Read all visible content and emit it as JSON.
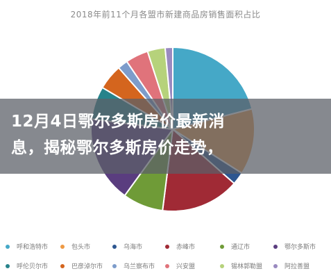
{
  "headline": {
    "line1": "12月4日鄂尔多斯房价最新消",
    "line2": "息，揭秘鄂尔多斯房价走势，"
  },
  "chart_data": {
    "type": "pie",
    "title": "2018年前11个月各盟市新建商品房销售面积占比",
    "slices": [
      {
        "label": "呼和浩特市",
        "value": 21.0,
        "color": "#45a8c7"
      },
      {
        "label": "包头市",
        "value": 13.0,
        "color": "#ee9a45"
      },
      {
        "label": "乌海市",
        "value": 2.5,
        "color": "#2d5690"
      },
      {
        "label": "赤峰市",
        "value": 15.5,
        "color": "#a02a35"
      },
      {
        "label": "通辽市",
        "value": 8.0,
        "color": "#6f9b37"
      },
      {
        "label": "鄂尔多斯市",
        "value": 17.0,
        "color": "#5a3d7f"
      },
      {
        "label": "呼伦贝尔市",
        "value": 6.5,
        "color": "#27838b"
      },
      {
        "label": "巴彦淖尔市",
        "value": 5.0,
        "color": "#d4651e"
      },
      {
        "label": "乌兰察布市",
        "value": 2.0,
        "color": "#7d9ccb"
      },
      {
        "label": "兴安盟",
        "value": 4.5,
        "color": "#e0737b"
      },
      {
        "label": "锡林郭勒盟",
        "value": 3.5,
        "color": "#b6d27b"
      },
      {
        "label": "阿拉善盟",
        "value": 1.5,
        "color": "#9a8ac0"
      }
    ]
  }
}
